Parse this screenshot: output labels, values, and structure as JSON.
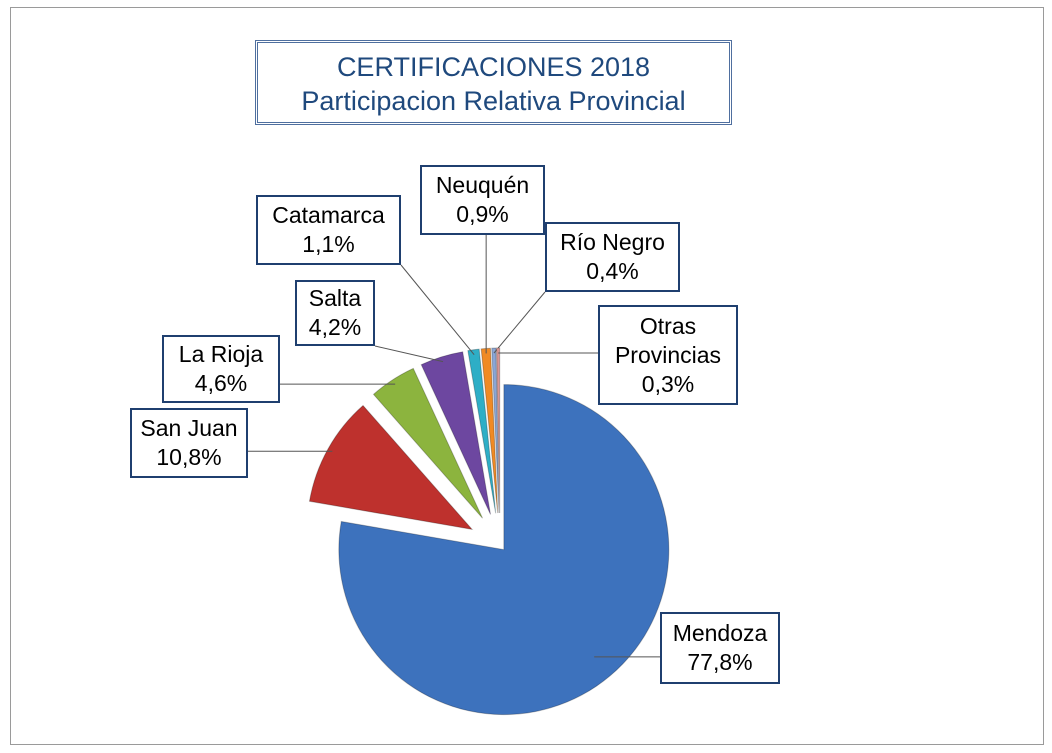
{
  "chart_data": {
    "type": "pie",
    "title": "CERTIFICACIONES 2018",
    "subtitle": "Participacion Relativa Provincial",
    "categories": [
      "Mendoza",
      "San Juan",
      "La Rioja",
      "Salta",
      "Catamarca",
      "Neuquén",
      "Río Negro",
      "Otras Provincias"
    ],
    "values": [
      77.8,
      10.8,
      4.6,
      4.2,
      1.1,
      0.9,
      0.4,
      0.3
    ],
    "value_labels": [
      "77,8%",
      "10,8%",
      "4,6%",
      "4,2%",
      "1,1%",
      "0,9%",
      "0,4%",
      "0,3%"
    ],
    "colors": [
      "#3d72bd",
      "#be312d",
      "#8cb43e",
      "#6d47a0",
      "#2eaec6",
      "#f08a24",
      "#8aa6d6",
      "#d99694"
    ]
  }
}
